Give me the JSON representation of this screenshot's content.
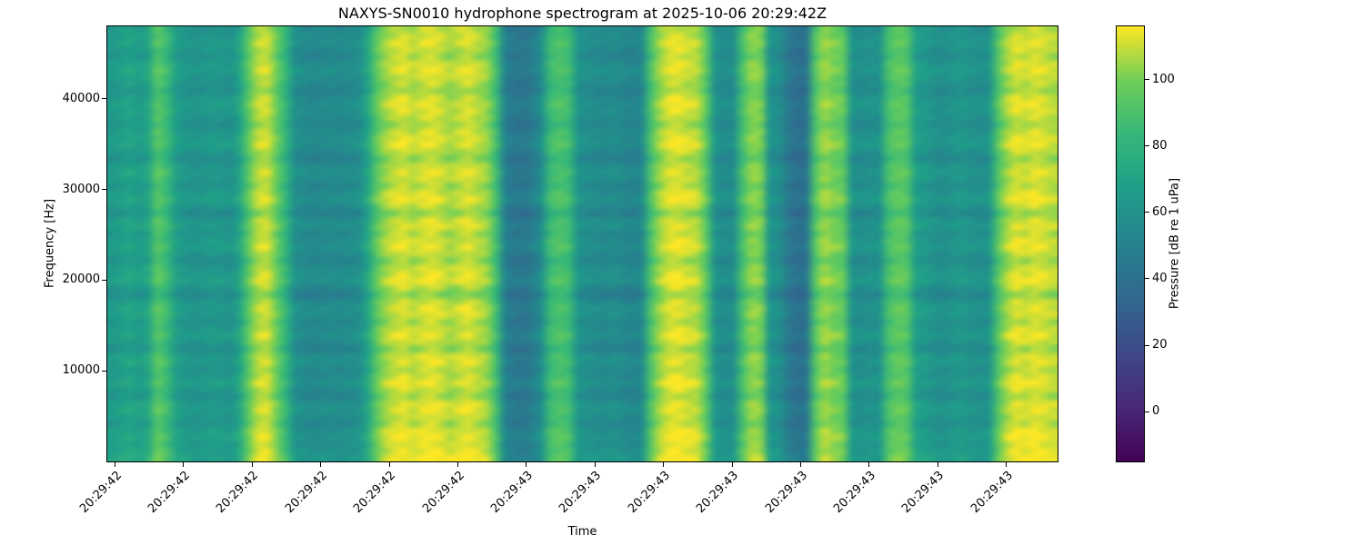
{
  "figure": {
    "background": "#ffffff",
    "text_color": "#000000"
  },
  "chart_data": {
    "type": "heatmap",
    "subtype": "spectrogram",
    "title": "NAXYS-SN0010 hydrophone spectrogram at 2025-10-06 20:29:42Z",
    "xlabel": "Time",
    "ylabel": "Frequency [Hz]",
    "x_tick_labels": [
      "20:29:42",
      "20:29:42",
      "20:29:42",
      "20:29:42",
      "20:29:42",
      "20:29:42",
      "20:29:43",
      "20:29:43",
      "20:29:43",
      "20:29:43",
      "20:29:43",
      "20:29:43",
      "20:29:43",
      "20:29:43"
    ],
    "y_tick_values": [
      10000,
      20000,
      30000,
      40000
    ],
    "y_axis_range_hz": [
      0,
      48000
    ],
    "colormap": "viridis",
    "viridis_stops": [
      "#440154",
      "#482878",
      "#3e4989",
      "#31688e",
      "#26828e",
      "#1f9e89",
      "#35b779",
      "#6ece58",
      "#fde725"
    ],
    "value_range_db": [
      -15,
      116
    ],
    "colorbar": {
      "label": "Pressure [dB re 1 uPa]",
      "tick_values": [
        100,
        80,
        60,
        40,
        20,
        0
      ]
    },
    "time_bins": 104,
    "freq_bins": 64,
    "column_levels_db": [
      64,
      67,
      70,
      66,
      72,
      92,
      85,
      68,
      63,
      61,
      62,
      64,
      63,
      61,
      72,
      95,
      108,
      110,
      98,
      82,
      60,
      56,
      54,
      55,
      56,
      55,
      57,
      58,
      72,
      95,
      105,
      110,
      112,
      108,
      111,
      113,
      110,
      106,
      109,
      112,
      108,
      104,
      88,
      52,
      45,
      44,
      48,
      58,
      85,
      90,
      86,
      62,
      58,
      56,
      55,
      57,
      54,
      52,
      56,
      90,
      105,
      112,
      113,
      110,
      108,
      95,
      62,
      57,
      58,
      88,
      102,
      100,
      62,
      58,
      46,
      40,
      43,
      92,
      104,
      100,
      96,
      62,
      58,
      60,
      61,
      88,
      95,
      92,
      68,
      64,
      60,
      58,
      61,
      63,
      60,
      59,
      62,
      92,
      106,
      112,
      110,
      113,
      111,
      108
    ],
    "row_modulation_db": [
      -2,
      0,
      2,
      -1,
      -3,
      1,
      3,
      0,
      -2,
      -5,
      0,
      2,
      1,
      -1,
      -4,
      0,
      2,
      3,
      -2,
      -6,
      -1,
      2,
      0,
      -3,
      1,
      4,
      -1,
      -7,
      0,
      2,
      -2,
      1,
      3,
      -1,
      -5,
      0,
      2,
      4,
      -2,
      -8,
      -1,
      2,
      1,
      -3,
      0,
      3,
      -1,
      -6,
      1,
      2,
      -2,
      0,
      4,
      -1,
      -4,
      2,
      3,
      0,
      -2,
      3,
      5,
      2,
      4,
      6
    ]
  }
}
